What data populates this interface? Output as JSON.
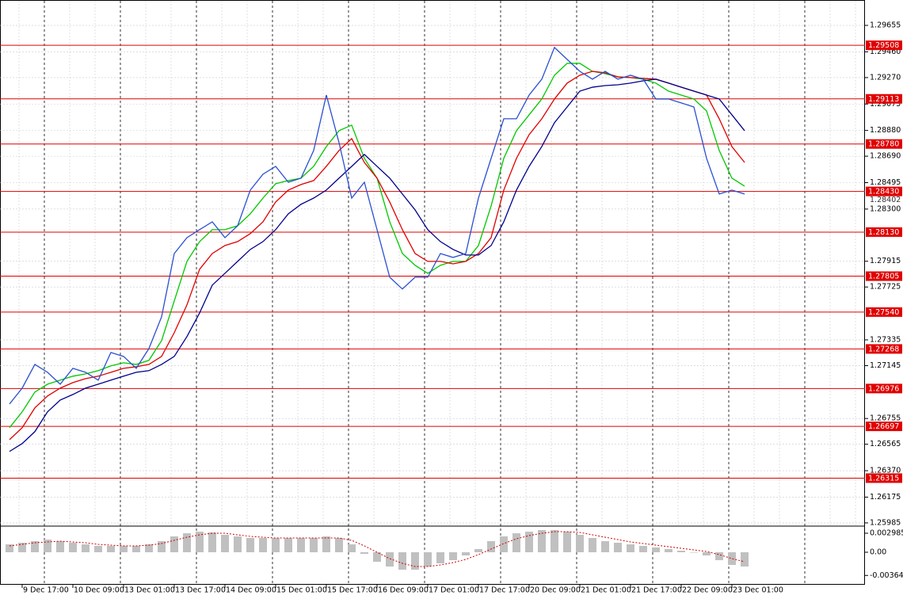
{
  "chart_data": [
    {
      "type": "line",
      "categories": [
        null,
        "9 Dec 17:00",
        null,
        null,
        null,
        "10 Dec 09:00",
        null,
        null,
        null,
        "13 Dec 01:00",
        null,
        null,
        null,
        "13 Dec 17:00",
        null,
        null,
        null,
        "14 Dec 09:00",
        null,
        null,
        null,
        "15 Dec 01:00",
        null,
        null,
        null,
        "15 Dec 17:00",
        null,
        null,
        null,
        "16 Dec 09:00",
        null,
        null,
        null,
        "17 Dec 01:00",
        null,
        null,
        null,
        "17 Dec 17:00",
        null,
        null,
        null,
        "20 Dec 09:00",
        null,
        null,
        null,
        "21 Dec 01:00",
        null,
        null,
        null,
        "21 Dec 17:00",
        null,
        null,
        null,
        "22 Dec 09:00",
        null,
        null,
        null,
        "23 Dec 01:00",
        null
      ],
      "series": [
        {
          "color": "#00c800",
          "values": [
            1.26687,
            1.26804,
            1.2695,
            1.27008,
            1.27038,
            1.27067,
            1.27084,
            1.27108,
            1.27143,
            1.27166,
            1.27154,
            1.27184,
            1.2733,
            1.27622,
            1.27914,
            1.2806,
            1.28148,
            1.28148,
            1.28177,
            1.28265,
            1.28381,
            1.28487,
            1.2851,
            1.28528,
            1.28615,
            1.28761,
            1.28878,
            1.28919,
            1.28674,
            1.28528,
            1.28206,
            1.27972,
            1.27885,
            1.27826,
            1.27885,
            1.27914,
            1.27914,
            1.28031,
            1.28323,
            1.28674,
            1.28878,
            1.28995,
            1.29112,
            1.29287,
            1.29375,
            1.29375,
            1.29316,
            1.29299,
            1.29275,
            1.2927,
            1.29258,
            1.29229,
            1.2917,
            1.29141,
            1.29112,
            1.29024,
            1.28732,
            1.28528,
            1.28469
          ]
        },
        {
          "color": "#e00000",
          "values": [
            1.26599,
            1.26687,
            1.26833,
            1.26921,
            1.26979,
            1.2702,
            1.27049,
            1.27067,
            1.27096,
            1.27125,
            1.27137,
            1.27154,
            1.27213,
            1.27388,
            1.27593,
            1.27856,
            1.27972,
            1.28031,
            1.2806,
            1.28119,
            1.28206,
            1.28352,
            1.2844,
            1.28481,
            1.2851,
            1.28615,
            1.28732,
            1.2882,
            1.28644,
            1.28528,
            1.28352,
            1.28148,
            1.27972,
            1.27914,
            1.27914,
            1.27896,
            1.27914,
            1.27972,
            1.28089,
            1.2844,
            1.28674,
            1.28849,
            1.28966,
            1.29112,
            1.29229,
            1.29287,
            1.29316,
            1.29305,
            1.29275,
            1.2927,
            1.29264,
            1.29258,
            1.29229,
            1.29199,
            1.2917,
            1.29141,
            1.28966,
            1.28761,
            1.28644
          ]
        },
        {
          "color": "#00008c",
          "values": [
            1.26512,
            1.2657,
            1.26658,
            1.26804,
            1.26891,
            1.26932,
            1.26979,
            1.27008,
            1.27038,
            1.27067,
            1.27096,
            1.27108,
            1.27154,
            1.27213,
            1.27359,
            1.27534,
            1.27739,
            1.27826,
            1.27914,
            1.28002,
            1.2806,
            1.28148,
            1.28265,
            1.28335,
            1.28381,
            1.2844,
            1.28528,
            1.28615,
            1.28703,
            1.28615,
            1.28528,
            1.28411,
            1.28294,
            1.28148,
            1.2806,
            1.28002,
            1.27961,
            1.27961,
            1.28031,
            1.28206,
            1.2844,
            1.28615,
            1.28761,
            1.28937,
            1.29053,
            1.2917,
            1.29199,
            1.29211,
            1.29217,
            1.29229,
            1.29246,
            1.29258,
            1.29229,
            1.29199,
            1.2917,
            1.29141,
            1.29112,
            1.28995,
            1.28878
          ]
        },
        {
          "color": "#2a4fd0",
          "values": [
            1.26862,
            1.26979,
            1.27154,
            1.27096,
            1.27008,
            1.27125,
            1.27096,
            1.27038,
            1.27242,
            1.27213,
            1.27125,
            1.27271,
            1.27505,
            1.27972,
            1.28089,
            1.28148,
            1.28206,
            1.28089,
            1.28177,
            1.2844,
            1.28557,
            1.28615,
            1.28498,
            1.28528,
            1.28732,
            1.29141,
            1.2879,
            1.28381,
            1.28498,
            1.28148,
            1.27797,
            1.2771,
            1.27797,
            1.27797,
            1.27972,
            1.27943,
            1.27972,
            1.28381,
            1.28674,
            1.28966,
            1.28966,
            1.29141,
            1.29258,
            1.29492,
            1.29404,
            1.29316,
            1.29258,
            1.29316,
            1.29258,
            1.29287,
            1.29258,
            1.29112,
            1.29112,
            1.29083,
            1.29053,
            1.28674,
            1.28411,
            1.2844,
            1.28411
          ]
        }
      ],
      "ylim": [
        1.25967,
        1.29813
      ],
      "yticks": [
        1.29655,
        {
          "value": 1.2946,
          "label": "1.29460"
        },
        {
          "value": 1.2927,
          "label": "1.29270"
        },
        1.29075,
        {
          "value": 1.2888,
          "label": "1.28880"
        },
        {
          "value": 1.2869,
          "label": "1.28690"
        },
        1.28495,
        {
          "value": 1.283,
          "label": "1.28300"
        },
        1.27915,
        1.27725,
        1.27335,
        1.27145,
        1.26755,
        1.26565,
        {
          "value": 1.2637,
          "label": "1.26370"
        },
        1.26175,
        1.25985
      ],
      "levels": [
        1.29508,
        1.29113,
        {
          "value": 1.2878,
          "label": "1.28780"
        },
        {
          "value": 1.2843,
          "label": "1.28430"
        },
        {
          "value": 1.2813,
          "label": "1.28130"
        },
        1.27805,
        {
          "value": 1.2754,
          "label": "1.27540"
        },
        1.27268,
        1.26976,
        1.26697,
        1.26315
      ],
      "level_color": "#e00000",
      "last_price": 1.28402,
      "grid": true
    },
    {
      "type": "bar",
      "values": [
        0.00124,
        0.00149,
        0.00174,
        0.00199,
        0.00174,
        0.00149,
        0.00124,
        0.001,
        0.001,
        0.001,
        0.001,
        0.00124,
        0.00174,
        0.00249,
        0.00298,
        0.00323,
        0.00311,
        0.00274,
        0.00249,
        0.00224,
        0.00224,
        0.00224,
        0.00224,
        0.00224,
        0.00224,
        0.00249,
        0.00224,
        0.00124,
        -0.00025,
        -0.00149,
        -0.00224,
        -0.00274,
        -0.00274,
        -0.00224,
        -0.00174,
        -0.00124,
        -0.0005,
        0.0005,
        0.00174,
        0.00249,
        0.00298,
        0.00323,
        0.00348,
        0.00348,
        0.00323,
        0.00274,
        0.00224,
        0.00174,
        0.00149,
        0.00124,
        0.001,
        0.00075,
        0.0005,
        0.00025,
        0,
        -0.0005,
        -0.00124,
        -0.00199,
        -0.00224
      ],
      "color": "#c0c0c0",
      "signal": {
        "color": "#d00000",
        "values": [
          0.001,
          0.00124,
          0.00149,
          0.00162,
          0.00174,
          0.00162,
          0.00149,
          0.00124,
          0.00112,
          0.001,
          0.001,
          0.00112,
          0.00137,
          0.00187,
          0.00236,
          0.00274,
          0.00298,
          0.00298,
          0.00274,
          0.00249,
          0.00236,
          0.00224,
          0.00224,
          0.00224,
          0.00224,
          0.00224,
          0.00224,
          0.00187,
          0.001,
          0,
          -0.001,
          -0.00174,
          -0.00224,
          -0.00224,
          -0.00199,
          -0.00162,
          -0.00112,
          -0.00037,
          0.0005,
          0.00137,
          0.00211,
          0.00261,
          0.00298,
          0.00323,
          0.00323,
          0.00311,
          0.00274,
          0.00236,
          0.00199,
          0.00162,
          0.00137,
          0.00112,
          0.00087,
          0.00062,
          0.00037,
          0.00012,
          -0.00037,
          -0.001,
          -0.00149
        ]
      },
      "ylim": [
        -0.0051,
        0.00398
      ],
      "yticks": [
        0.002985,
        {
          "value": 0,
          "label": "0.00"
        },
        -0.00364
      ]
    }
  ]
}
